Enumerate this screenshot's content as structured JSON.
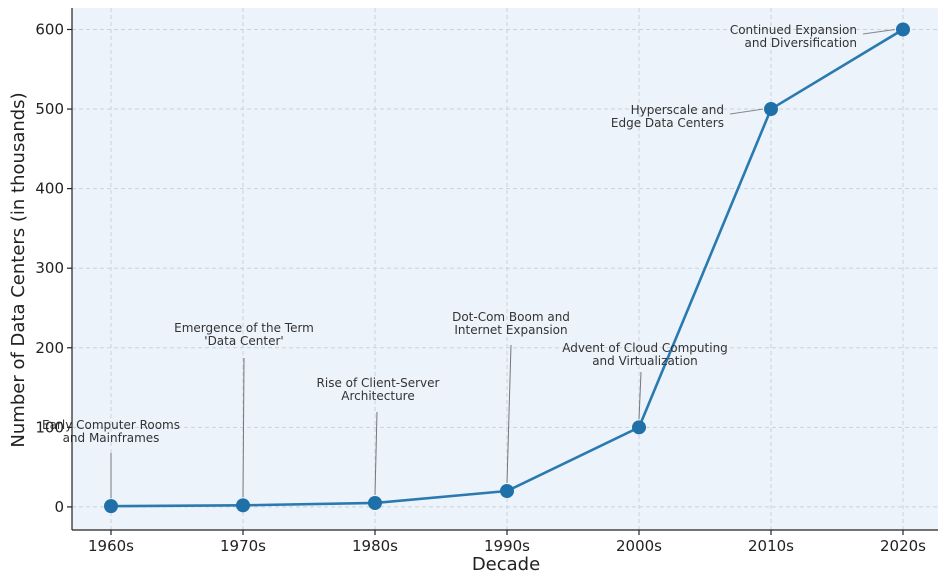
{
  "chart_data": {
    "type": "line",
    "title": "",
    "xlabel": "Decade",
    "ylabel": "Number of Data Centers (in thousands)",
    "categories": [
      "1960s",
      "1970s",
      "1980s",
      "1990s",
      "2000s",
      "2010s",
      "2020s"
    ],
    "series": [
      {
        "values": [
          1,
          2,
          5,
          20,
          100,
          500,
          600
        ]
      }
    ],
    "ylim": [
      -29,
      627
    ],
    "yticks": [
      0,
      100,
      200,
      300,
      400,
      500,
      600
    ],
    "grid": true,
    "colors": {
      "line": "#2a7ab0",
      "marker": "#1f6fa8",
      "background": "#ecf3fb",
      "grid": "#c8d3de"
    },
    "annotations": [
      {
        "index": 0,
        "lines": [
          "Early Computer Rooms",
          "and Mainframes"
        ]
      },
      {
        "index": 1,
        "lines": [
          "Emergence of the Term",
          "'Data Center'"
        ]
      },
      {
        "index": 2,
        "lines": [
          "Rise of Client-Server",
          "Architecture"
        ]
      },
      {
        "index": 3,
        "lines": [
          "Dot-Com Boom and",
          "Internet Expansion"
        ]
      },
      {
        "index": 4,
        "lines": [
          "Advent of Cloud Computing",
          "and Virtualization"
        ]
      },
      {
        "index": 5,
        "lines": [
          "Hyperscale and",
          "Edge Data Centers"
        ]
      },
      {
        "index": 6,
        "lines": [
          "Continued Expansion",
          "and Diversification"
        ]
      }
    ]
  }
}
